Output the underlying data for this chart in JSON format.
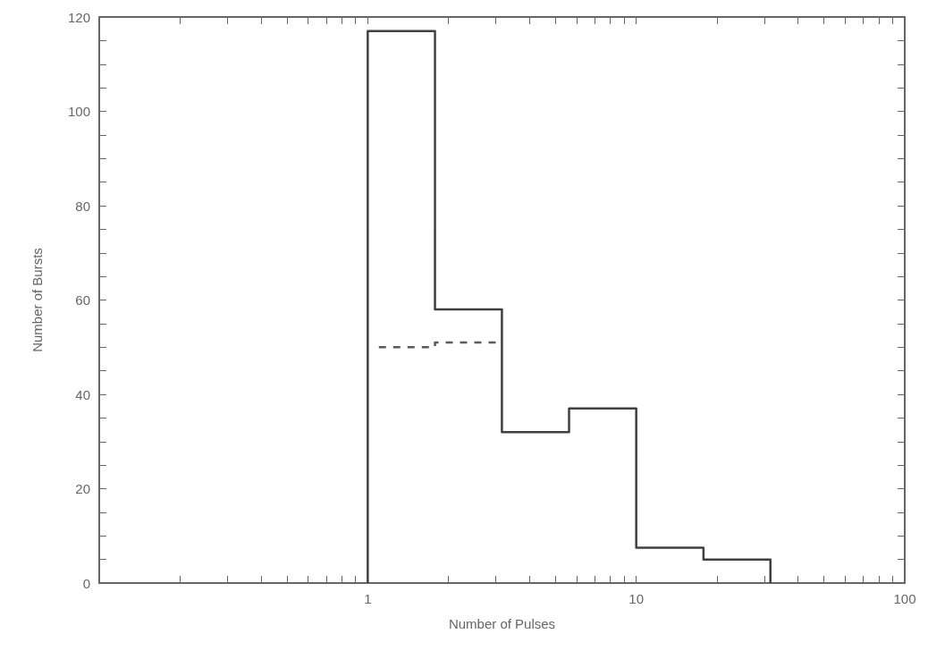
{
  "chart_data": {
    "type": "histogram",
    "xlabel": "Number of Pulses",
    "ylabel": "Number of Bursts",
    "log": "x",
    "bins": [
      1,
      1.78,
      3.16,
      5.62,
      10,
      17.8,
      31.6
    ],
    "series": [
      {
        "color": "#404040",
        "line_style": "solid",
        "values": [
          117,
          58,
          32,
          37,
          7.5,
          5
        ]
      },
      {
        "type": "line",
        "color": "#5a5a5a",
        "line_style": "dashed",
        "x": [
          1.1,
          1.78,
          1.78,
          3.1
        ],
        "values": [
          50,
          50,
          51,
          51
        ]
      }
    ],
    "xlim": [
      0.1,
      100
    ],
    "xticks": [
      1,
      10,
      100
    ],
    "ylim": [
      0,
      120
    ],
    "yticks": [
      0,
      20,
      40,
      60,
      80,
      100,
      120
    ],
    "grid": false
  }
}
